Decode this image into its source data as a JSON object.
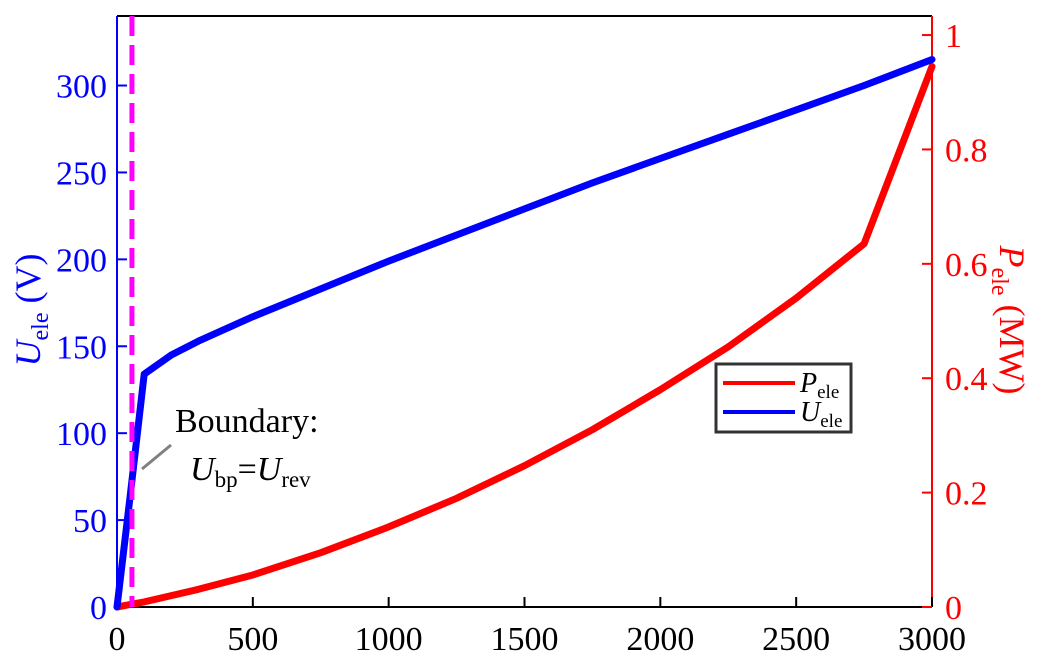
{
  "chart_data": {
    "type": "line",
    "xlabel": "",
    "xlim": [
      0,
      3000
    ],
    "x_ticks": [
      "0",
      "500",
      "1000",
      "1500",
      "2000",
      "2500",
      "3000"
    ],
    "y_left": {
      "label_main": "U",
      "label_sub": "ele",
      "label_unit": " (V)",
      "lim": [
        0,
        340
      ],
      "ticks": [
        "0",
        "50",
        "100",
        "150",
        "200",
        "250",
        "300"
      ],
      "color": "#0000ff"
    },
    "y_right": {
      "label_main": "P",
      "label_sub": "ele",
      "label_unit": " (MW)",
      "lim": [
        0,
        1.0333
      ],
      "ticks": [
        "0",
        "0.2",
        "0.4",
        "0.6",
        "0.8",
        "1"
      ],
      "color": "#ff0000"
    },
    "series": [
      {
        "name_main": "P",
        "name_sub": "ele",
        "axis": "right",
        "color": "#ff0000",
        "x": [
          0,
          50,
          100,
          200,
          300,
          500,
          750,
          1000,
          1250,
          1500,
          1750,
          2000,
          2250,
          2500,
          2750,
          3000
        ],
        "y": [
          0.0,
          0.0045,
          0.009,
          0.02,
          0.031,
          0.056,
          0.095,
          0.14,
          0.19,
          0.247,
          0.31,
          0.38,
          0.455,
          0.54,
          0.635,
          0.945
        ]
      },
      {
        "name_main": "U",
        "name_sub": "ele",
        "axis": "left",
        "color": "#0000ff",
        "x": [
          0,
          50,
          100,
          200,
          300,
          500,
          750,
          1000,
          1250,
          1500,
          1750,
          2000,
          2250,
          2500,
          2750,
          3000
        ],
        "y": [
          0,
          66,
          134,
          145,
          153,
          167,
          183,
          199,
          214,
          229,
          244,
          258,
          272,
          286,
          300,
          315
        ]
      }
    ],
    "boundary": {
      "x": 55,
      "color": "#ff00ff",
      "label_line1": "Boundary:",
      "label_lhs_main": "U",
      "label_lhs_sub": "bp",
      "label_eq": "=",
      "label_rhs_main": "U",
      "label_rhs_sub": "rev"
    },
    "legend_position": "center-right",
    "grid": false
  }
}
